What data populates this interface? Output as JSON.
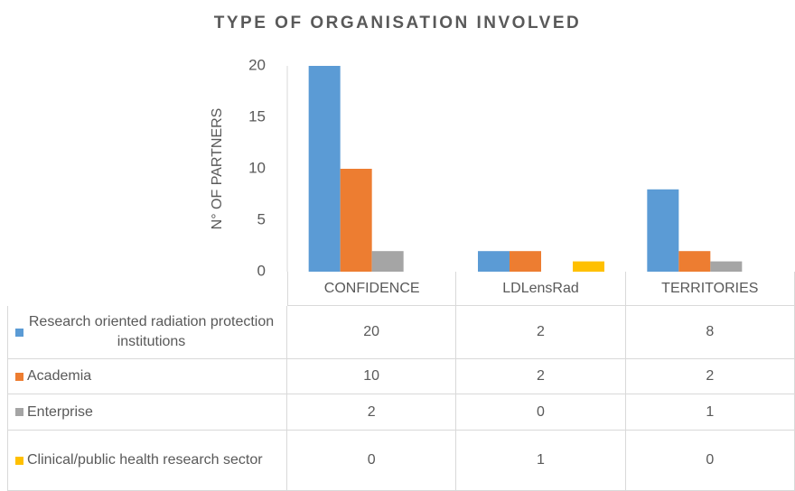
{
  "chart_data": {
    "type": "bar",
    "title": "TYPE OF ORGANISATION INVOLVED",
    "y_label": "N° OF PARTNERS",
    "categories": [
      "CONFIDENCE",
      "LDLensRad",
      "TERRITORIES"
    ],
    "series": [
      {
        "name": "Research oriented radiation protection institutions",
        "color": "#5b9bd5",
        "values": [
          20,
          2,
          8
        ]
      },
      {
        "name": "Academia",
        "color": "#ed7d31",
        "values": [
          10,
          2,
          2
        ]
      },
      {
        "name": "Enterprise",
        "color": "#a5a5a5",
        "values": [
          2,
          0,
          1
        ]
      },
      {
        "name": "Clinical/public health research sector",
        "color": "#ffc000",
        "values": [
          0,
          1,
          0
        ]
      }
    ],
    "ylim": [
      0,
      20
    ],
    "yticks": [
      0,
      5,
      10,
      15,
      20
    ],
    "grid": false,
    "data_table": true
  }
}
